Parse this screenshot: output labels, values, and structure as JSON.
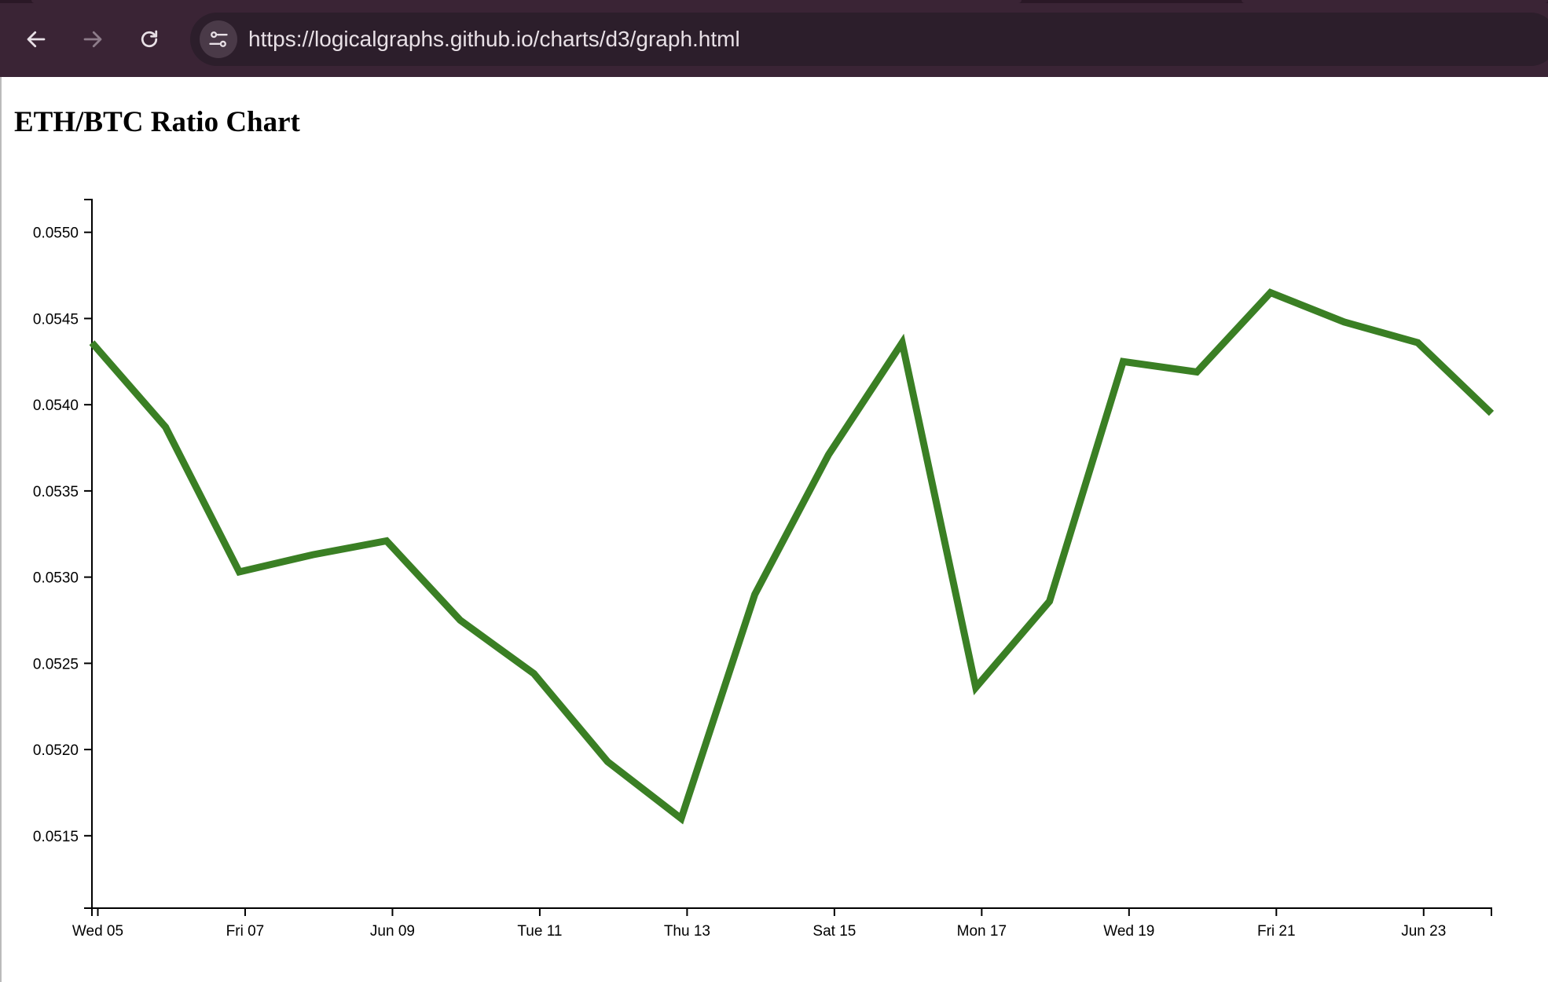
{
  "browser": {
    "url": "https://logicalgraphs.github.io/charts/d3/graph.html",
    "icons": {
      "back": "arrow-left-icon",
      "forward": "arrow-right-icon",
      "reload": "reload-icon",
      "site_info": "tune-icon"
    },
    "colors": {
      "toolbar": "#3a2435",
      "url_box": "#2c1e2b",
      "url_text": "#e8e0e6"
    }
  },
  "page": {
    "title": "ETH/BTC Ratio Chart"
  },
  "chart_data": {
    "type": "line",
    "title": "ETH/BTC Ratio Chart",
    "xlabel": "",
    "ylabel": "",
    "x": [
      "2024-06-05",
      "2024-06-06",
      "2024-06-07",
      "2024-06-08",
      "2024-06-09",
      "2024-06-10",
      "2024-06-11",
      "2024-06-12",
      "2024-06-13",
      "2024-06-14",
      "2024-06-15",
      "2024-06-16",
      "2024-06-17",
      "2024-06-18",
      "2024-06-19",
      "2024-06-20",
      "2024-06-21",
      "2024-06-22",
      "2024-06-23",
      "2024-06-24"
    ],
    "series": [
      {
        "values": [
          0.05436,
          0.05387,
          0.05303,
          0.05313,
          0.05321,
          0.05275,
          0.05244,
          0.05193,
          0.0516,
          0.0529,
          0.05371,
          0.05436,
          0.05236,
          0.05286,
          0.05425,
          0.05419,
          0.05465,
          0.05448,
          0.05436,
          0.05395
        ],
        "color": "#3a7f24"
      }
    ],
    "x_ticks": [
      "Wed 05",
      "Fri 07",
      "Jun 09",
      "Tue 11",
      "Thu 13",
      "Sat 15",
      "Mon 17",
      "Wed 19",
      "Fri 21",
      "Jun 23"
    ],
    "y_ticks": [
      "0.0550",
      "0.0545",
      "0.0540",
      "0.0535",
      "0.0530",
      "0.0525",
      "0.0520",
      "0.0515"
    ],
    "xlim": [
      "2024-06-05",
      "2024-06-24"
    ],
    "ylim": [
      0.05108,
      0.05519
    ],
    "grid": false,
    "legend": "none"
  }
}
